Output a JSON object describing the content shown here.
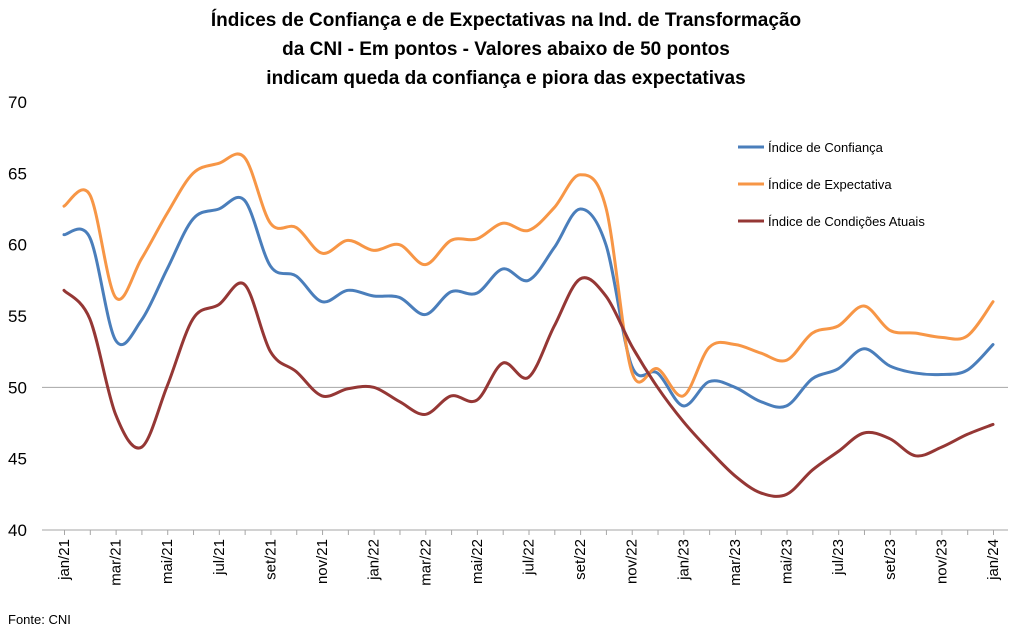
{
  "chart_data": {
    "type": "line",
    "title": [
      "Índices de Confiança e de Expectativas na Ind. de Transformação",
      "da CNI - Em pontos - Valores abaixo de 50 pontos",
      "indicam queda da confiança e piora das expectativas"
    ],
    "xlabel": "",
    "ylabel": "",
    "ylim": [
      40,
      70
    ],
    "yticks": [
      "40",
      "45",
      "50",
      "55",
      "60",
      "65",
      "70"
    ],
    "reference_line": 50,
    "grid": false,
    "legend_position": "top-right",
    "x": [
      "jan/21",
      "fev/21",
      "mar/21",
      "abr/21",
      "mai/21",
      "jun/21",
      "jul/21",
      "ago/21",
      "set/21",
      "out/21",
      "nov/21",
      "dez/21",
      "jan/22",
      "fev/22",
      "mar/22",
      "abr/22",
      "mai/22",
      "jun/22",
      "jul/22",
      "ago/22",
      "set/22",
      "out/22",
      "nov/22",
      "dez/22",
      "jan/23",
      "fev/23",
      "mar/23",
      "abr/23",
      "mai/23",
      "jun/23",
      "jul/23",
      "ago/23",
      "set/23",
      "out/23",
      "nov/23",
      "dez/23",
      "jan/24"
    ],
    "x_tick_labels": [
      "jan/21",
      "mar/21",
      "mai/21",
      "jul/21",
      "set/21",
      "nov/21",
      "jan/22",
      "mar/22",
      "mai/22",
      "jul/22",
      "set/22",
      "nov/22",
      "jan/23",
      "mar/23",
      "mai/23",
      "jul/23",
      "set/23",
      "nov/23",
      "jan/24"
    ],
    "series": [
      {
        "name": "Índice de Confiança",
        "color": "#4a7ebb",
        "values": [
          60.7,
          60.5,
          53.3,
          54.7,
          58.3,
          61.8,
          62.5,
          63.1,
          58.5,
          57.8,
          56.0,
          56.8,
          56.4,
          56.3,
          55.1,
          56.7,
          56.6,
          58.3,
          57.5,
          59.8,
          62.5,
          60.0,
          51.5,
          51.0,
          48.7,
          50.4,
          50.0,
          49.0,
          48.7,
          50.6,
          51.3,
          52.7,
          51.5,
          51.0,
          50.9,
          51.2,
          53.0
        ]
      },
      {
        "name": "Índice de Expectativa",
        "color": "#f79646",
        "values": [
          62.7,
          63.5,
          56.3,
          59.0,
          62.2,
          65.0,
          65.7,
          66.1,
          61.5,
          61.2,
          59.4,
          60.3,
          59.6,
          60.0,
          58.6,
          60.3,
          60.4,
          61.5,
          61.0,
          62.6,
          64.9,
          62.6,
          51.1,
          51.3,
          49.4,
          52.8,
          53.0,
          52.4,
          51.9,
          53.8,
          54.3,
          55.7,
          54.0,
          53.8,
          53.5,
          53.6,
          56.0
        ]
      },
      {
        "name": "Índice de Condições Atuais",
        "color": "#953735",
        "values": [
          56.8,
          54.8,
          48.1,
          45.8,
          50.1,
          54.8,
          55.8,
          57.2,
          52.5,
          51.1,
          49.4,
          49.9,
          50.0,
          49.0,
          48.1,
          49.4,
          49.1,
          51.7,
          50.7,
          54.3,
          57.6,
          56.4,
          52.9,
          50.0,
          47.6,
          45.6,
          43.8,
          42.6,
          42.5,
          44.2,
          45.5,
          46.8,
          46.4,
          45.2,
          45.8,
          46.7,
          47.4
        ]
      }
    ]
  },
  "source": "Fonte: CNI"
}
